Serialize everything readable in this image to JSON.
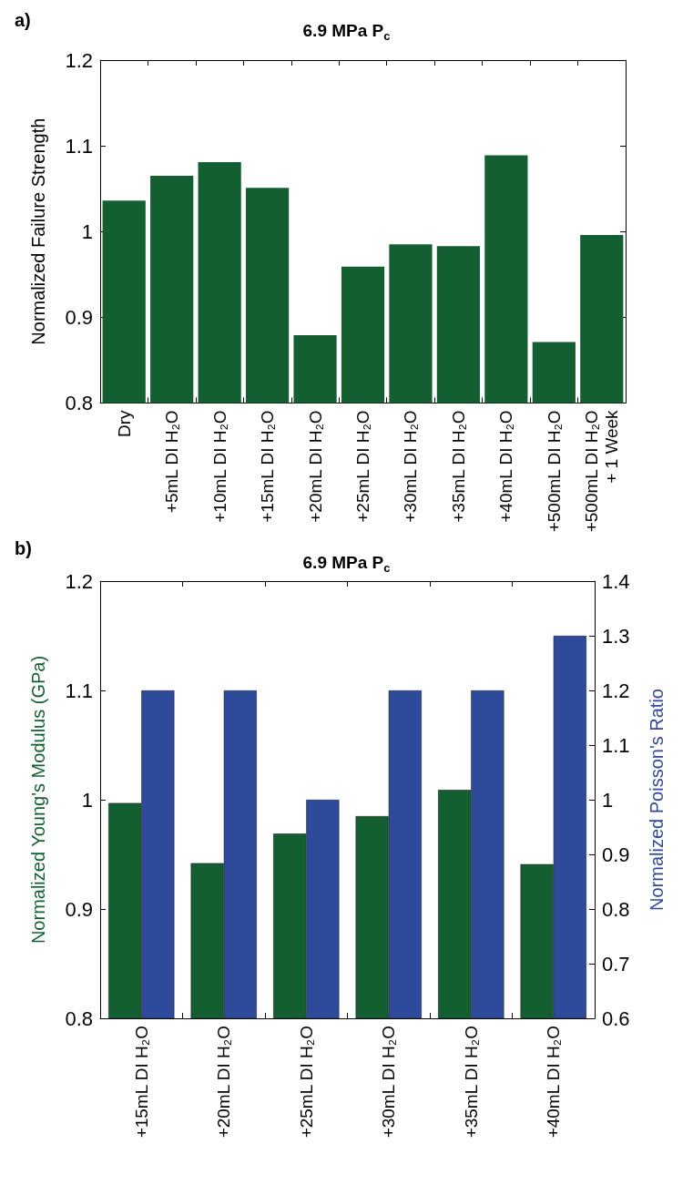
{
  "chart_data": [
    {
      "type": "bar",
      "title": "6.9 MPa P$_{c}$",
      "ylabel": "Normalized Failure Strength",
      "annotations": [
        "a)"
      ],
      "categories": [
        "Dry",
        "+5mL DI H₂O",
        "+10mL DI H₂O",
        "+15mL DI H₂O",
        "+20mL DI H₂O",
        "+25mL DI H₂O",
        "+30mL DI H₂O",
        "+35mL DI H₂O",
        "+40mL DI H₂O",
        "+500mL DI H₂O",
        "+500mL DI H₂O\n+ 1 Week"
      ],
      "series": [
        {
          "color": "#135f32",
          "values": [
            1.036,
            1.065,
            1.081,
            1.051,
            0.879,
            0.959,
            0.985,
            0.983,
            1.089,
            0.871,
            0.996
          ]
        }
      ],
      "ylim": [
        0.8,
        1.2
      ],
      "yticks": [
        0.8,
        0.9,
        1,
        1.1,
        1.2
      ]
    },
    {
      "type": "bar",
      "title": "6.9 MPa P$_{c}$",
      "ylabel": "Normalized Young's Modulus (GPa)",
      "y2label": "Normalized Poisson's Ratio",
      "annotations": [
        "b)"
      ],
      "categories": [
        "+15mL DI H₂O",
        "+20mL DI H₂O",
        "+25mL DI H₂O",
        "+30mL DI H₂O",
        "+35mL DI H₂O",
        "+40mL DI H₂O"
      ],
      "series": [
        {
          "color": "#135f32",
          "values": [
            0.997,
            0.942,
            0.969,
            0.985,
            1.009,
            0.941
          ]
        },
        {
          "color": "#2e4a9a",
          "axis": "y2",
          "values": [
            1.2,
            1.2,
            1.0,
            1.2,
            1.2,
            1.3
          ]
        }
      ],
      "ylim": [
        0.8,
        1.2
      ],
      "yticks": [
        0.8,
        0.9,
        1,
        1.1,
        1.2
      ],
      "y2lim": [
        0.6,
        1.4
      ],
      "y2ticks": [
        0.6,
        0.7,
        0.8,
        0.9,
        1,
        1.1,
        1.2,
        1.3,
        1.4
      ]
    }
  ]
}
